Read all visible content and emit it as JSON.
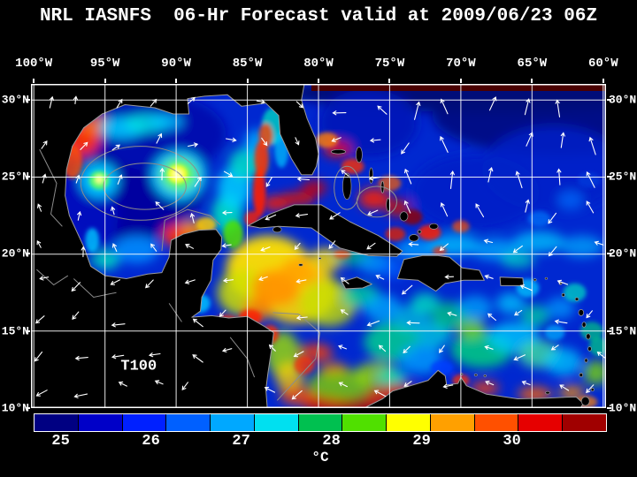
{
  "header": {
    "title": "NRL IASNFS  06-Hr Forecast valid at 2009/06/23 06Z"
  },
  "axes": {
    "top_lon": [
      "100°W",
      "95°W",
      "90°W",
      "85°W",
      "80°W",
      "75°W",
      "70°W",
      "65°W",
      "60°W"
    ],
    "left_lat": [
      "30°N",
      "25°N",
      "20°N",
      "15°N",
      "10°N"
    ],
    "right_lat": [
      "30°N",
      "25°N",
      "20°N",
      "15°N",
      "10°N"
    ]
  },
  "map": {
    "annotation": "T100"
  },
  "colorbar": {
    "tick_labels": [
      "25",
      "26",
      "27",
      "28",
      "29",
      "30"
    ],
    "unit": "°C",
    "segment_colors": [
      "#000082",
      "#0000C8",
      "#0020FF",
      "#0060FF",
      "#00A8FF",
      "#00E0F0",
      "#00C050",
      "#50E000",
      "#FFFF00",
      "#FFA000",
      "#FF5000",
      "#E60000",
      "#A00000"
    ]
  },
  "palette": {
    "background": "#000000",
    "grid": "#FFFFFF",
    "land": "#000000",
    "coastline": "#9A9A9A",
    "vectors": "#FFFFFF"
  }
}
